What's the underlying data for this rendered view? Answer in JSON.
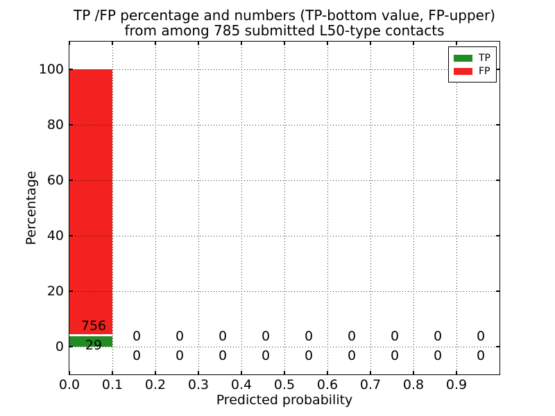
{
  "chart_data": {
    "type": "bar",
    "stacked": true,
    "title_line1": "TP /FP percentage and numbers (TP-bottom value, FP-upper)",
    "title_line2": "from among 785 submitted L50-type contacts",
    "xlabel": "Predicted probability",
    "ylabel": "Percentage",
    "total_contacts": 785,
    "xlim": [
      0.0,
      1.0
    ],
    "ylim": [
      -10,
      110
    ],
    "grid": true,
    "bin_width": 0.1,
    "xticks": [
      0.0,
      0.1,
      0.2,
      0.3,
      0.4,
      0.5,
      0.6,
      0.7,
      0.8,
      0.9
    ],
    "xtick_labels": [
      "0.0",
      "0.1",
      "0.2",
      "0.3",
      "0.4",
      "0.5",
      "0.6",
      "0.7",
      "0.8",
      "0.9"
    ],
    "yticks": [
      0,
      20,
      40,
      60,
      80,
      100
    ],
    "ytick_labels": [
      "0",
      "20",
      "40",
      "60",
      "80",
      "100"
    ],
    "bins": [
      {
        "x0": 0.0,
        "x1": 0.1,
        "tp": 29,
        "fp": 756
      },
      {
        "x0": 0.1,
        "x1": 0.2,
        "tp": 0,
        "fp": 0
      },
      {
        "x0": 0.2,
        "x1": 0.3,
        "tp": 0,
        "fp": 0
      },
      {
        "x0": 0.3,
        "x1": 0.4,
        "tp": 0,
        "fp": 0
      },
      {
        "x0": 0.4,
        "x1": 0.5,
        "tp": 0,
        "fp": 0
      },
      {
        "x0": 0.5,
        "x1": 0.6,
        "tp": 0,
        "fp": 0
      },
      {
        "x0": 0.6,
        "x1": 0.7,
        "tp": 0,
        "fp": 0
      },
      {
        "x0": 0.7,
        "x1": 0.8,
        "tp": 0,
        "fp": 0
      },
      {
        "x0": 0.8,
        "x1": 0.9,
        "tp": 0,
        "fp": 0
      },
      {
        "x0": 0.9,
        "x1": 1.0,
        "tp": 0,
        "fp": 0
      }
    ],
    "legend": {
      "position": "upper right",
      "entries": [
        {
          "label": "TP",
          "color": "#228b22"
        },
        {
          "label": "FP",
          "color": "#f42121"
        }
      ]
    },
    "colors": {
      "tp": "#228b22",
      "fp": "#f42121",
      "background": "#ffffff",
      "text": "#000000",
      "grid": "#000000"
    }
  }
}
